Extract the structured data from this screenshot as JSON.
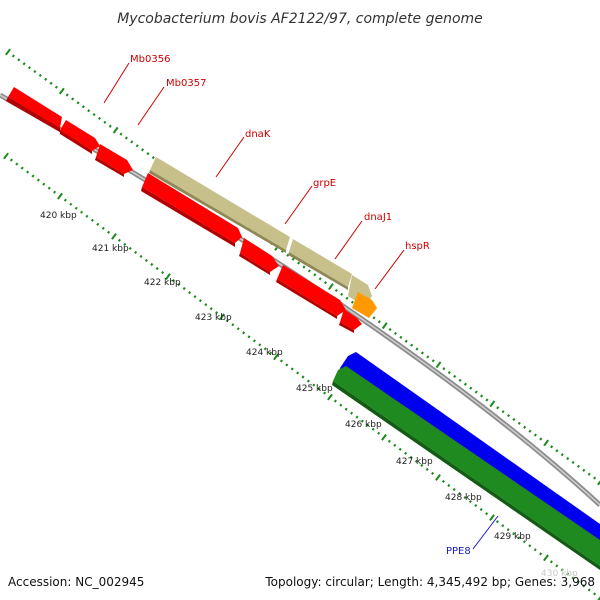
{
  "header": {
    "title": "Mycobacterium bovis AF2122/97, complete genome"
  },
  "footer": {
    "accession": "Accession: NC_002945",
    "topology": "Topology: circular; Length: 4,345,492 bp; Genes: 3,968"
  },
  "ruler": {
    "labels": [
      "420 kbp",
      "421 kbp",
      "422 kbp",
      "423 kbp",
      "424 kbp",
      "425 kbp",
      "426 kbp",
      "427 kbp",
      "428 kbp",
      "429 kbp",
      "430 kbp"
    ]
  },
  "genes": {
    "Mb0356": "Mb0356",
    "Mb0357": "Mb0357",
    "dnaK": "dnaK",
    "grpE": "grpE",
    "dnaJ1": "dnaJ1",
    "hspR": "hspR",
    "PPE8": "PPE8"
  },
  "colors": {
    "backbone": "#8c8c8c",
    "forward_cds": "#ff0000",
    "forward_cds_dark": "#b30000",
    "khaki_cds": "#c8c08a",
    "orange_cds": "#ff9900",
    "reverse_blue": "#0000ee",
    "reverse_green": "#1f8a1f",
    "tick": "#1a8a1a",
    "label_red": "#cc0000",
    "label_blue": "#1a1acc"
  }
}
